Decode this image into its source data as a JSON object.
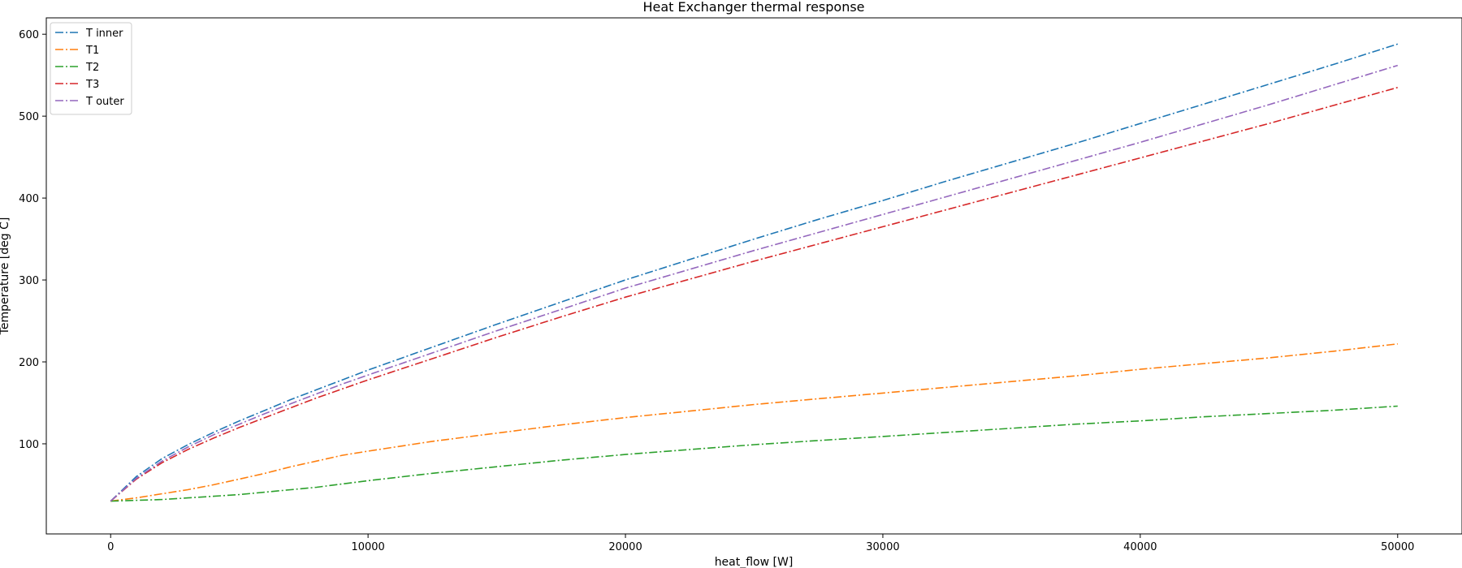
{
  "chart_data": {
    "type": "line",
    "title": "Heat Exchanger thermal response",
    "xlabel": "heat_flow [W]",
    "ylabel": "Temperature [deg C]",
    "xlim": [
      -2500,
      52500
    ],
    "ylim": [
      -10,
      620
    ],
    "xticks": [
      0,
      10000,
      20000,
      30000,
      40000,
      50000
    ],
    "yticks": [
      100,
      200,
      300,
      400,
      500,
      600
    ],
    "grid": false,
    "legend_position": "upper left",
    "line_style": "dash-dot",
    "x": [
      0,
      1000,
      2000,
      3000,
      4000,
      5000,
      6000,
      7000,
      8000,
      9000,
      10000,
      12500,
      15000,
      17500,
      20000,
      22500,
      25000,
      27500,
      30000,
      32500,
      35000,
      37500,
      40000,
      42500,
      45000,
      47500,
      50000
    ],
    "series": [
      {
        "name": "T inner",
        "color": "#1f77b4",
        "values": [
          30,
          60,
          82,
          99,
          114,
          128,
          141,
          154,
          166,
          178,
          190,
          218,
          246,
          273,
          300,
          325,
          350,
          374,
          397,
          421,
          444,
          467,
          491,
          515,
          539,
          563,
          588
        ]
      },
      {
        "name": "T1",
        "color": "#ff7f0e",
        "values": [
          30,
          34,
          39,
          44,
          50,
          57,
          64,
          72,
          79,
          86,
          91,
          103,
          113,
          123,
          132,
          140,
          148,
          155,
          162,
          169,
          176,
          183,
          191,
          198,
          205,
          213,
          222
        ]
      },
      {
        "name": "T2",
        "color": "#2ca02c",
        "values": [
          30,
          31,
          32,
          34,
          36,
          38,
          41,
          44,
          47,
          51,
          55,
          64,
          72,
          80,
          87,
          93,
          99,
          104,
          109,
          114,
          119,
          124,
          128,
          133,
          137,
          141,
          146
        ]
      },
      {
        "name": "T3",
        "color": "#d62728",
        "values": [
          30,
          57,
          77,
          93,
          107,
          120,
          132,
          144,
          156,
          167,
          178,
          204,
          230,
          255,
          279,
          301,
          323,
          344,
          365,
          386,
          407,
          428,
          449,
          470,
          491,
          513,
          535
        ]
      },
      {
        "name": "T outer",
        "color": "#9467bd",
        "values": [
          30,
          58,
          79,
          96,
          111,
          124,
          137,
          149,
          161,
          173,
          184,
          211,
          238,
          264,
          290,
          313,
          336,
          358,
          380,
          402,
          424,
          446,
          468,
          491,
          514,
          538,
          562
        ]
      }
    ]
  }
}
